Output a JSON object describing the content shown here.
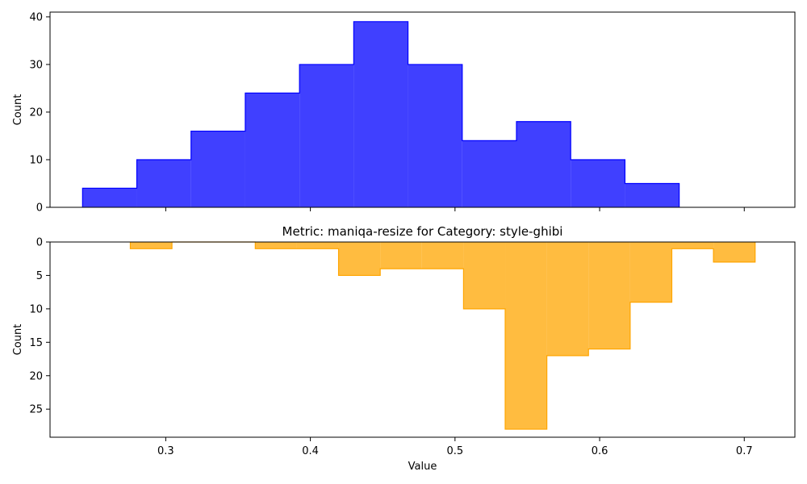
{
  "chart_data": [
    {
      "type": "histogram",
      "title": "",
      "xlabel": "",
      "ylabel": "Count",
      "xlim": [
        0.22,
        0.735
      ],
      "ylim": [
        0,
        41
      ],
      "y_inverted": false,
      "xticks": [
        0.3,
        0.4,
        0.5,
        0.6,
        0.7
      ],
      "xtick_labels_visible": false,
      "yticks": [
        0,
        10,
        20,
        30,
        40
      ],
      "grid": false,
      "series": [
        {
          "color": "#0000ff",
          "fill_alpha": 0.75,
          "bin_edges": [
            0.2425,
            0.28,
            0.3175,
            0.355,
            0.3925,
            0.43,
            0.4675,
            0.505,
            0.5425,
            0.58,
            0.6175,
            0.655
          ],
          "counts": [
            4,
            10,
            16,
            24,
            30,
            39,
            30,
            14,
            18,
            10,
            5
          ]
        }
      ]
    },
    {
      "type": "histogram",
      "title": "Metric: maniqa-resize for Category: style-ghibi",
      "xlabel": "Value",
      "ylabel": "Count",
      "xlim": [
        0.22,
        0.735
      ],
      "ylim": [
        0,
        29.2
      ],
      "y_inverted": true,
      "xticks": [
        0.3,
        0.4,
        0.5,
        0.6,
        0.7
      ],
      "xtick_labels_visible": true,
      "yticks": [
        0,
        5,
        10,
        15,
        20,
        25
      ],
      "grid": false,
      "series": [
        {
          "color": "#ffa500",
          "fill_alpha": 0.75,
          "bin_edges": [
            0.2755,
            0.3043,
            0.3331,
            0.3619,
            0.3907,
            0.4195,
            0.4483,
            0.4771,
            0.5059,
            0.5347,
            0.5635,
            0.5923,
            0.6211,
            0.6499,
            0.6787,
            0.7075
          ],
          "counts": [
            1,
            0,
            0,
            1,
            1,
            5,
            4,
            4,
            10,
            28,
            17,
            16,
            9,
            1,
            3
          ]
        }
      ]
    }
  ]
}
